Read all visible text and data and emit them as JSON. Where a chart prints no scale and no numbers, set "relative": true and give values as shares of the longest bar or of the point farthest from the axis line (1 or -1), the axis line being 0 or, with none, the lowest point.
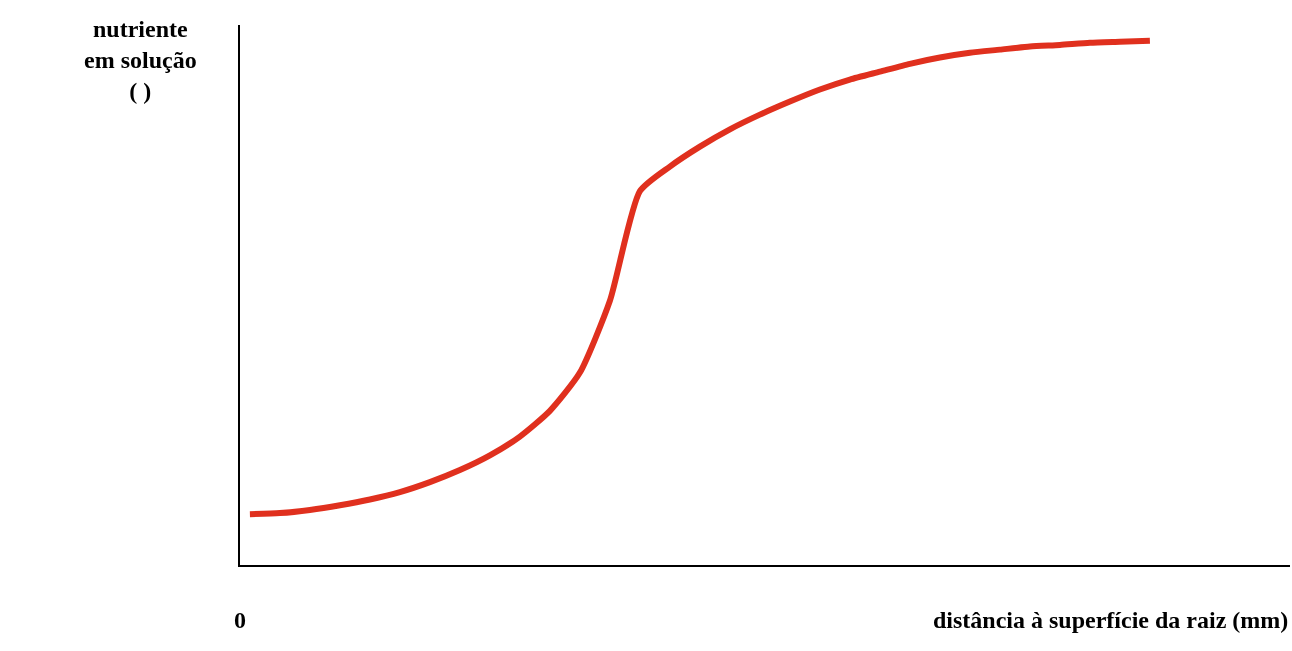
{
  "chart_data": {
    "type": "line",
    "relative": true,
    "xlabel": "distância à superfície da raiz (mm)",
    "ylabel": "nutriente\nem solução\n( )",
    "annotations": [
      "0"
    ],
    "categories": [
      null,
      null,
      null,
      null,
      null,
      null,
      null,
      null,
      null,
      null,
      null,
      null,
      null,
      null,
      null,
      null,
      null,
      null,
      null,
      null,
      null,
      null,
      null,
      null,
      null,
      null,
      null,
      null,
      null,
      null,
      null
    ],
    "series": [
      {
        "color": "#e0301e",
        "values": [
          0.097,
          0.099,
          0.105,
          0.114,
          0.125,
          0.139,
          0.158,
          0.181,
          0.209,
          0.245,
          0.294,
          0.367,
          0.504,
          0.713,
          0.76,
          0.798,
          0.831,
          0.859,
          0.884,
          0.907,
          0.926,
          0.941,
          0.956,
          0.968,
          0.977,
          0.983,
          0.989,
          0.992,
          0.996,
          0.998,
          1
        ]
      }
    ],
    "legend": false,
    "marker": "none",
    "line_style": "solid"
  }
}
